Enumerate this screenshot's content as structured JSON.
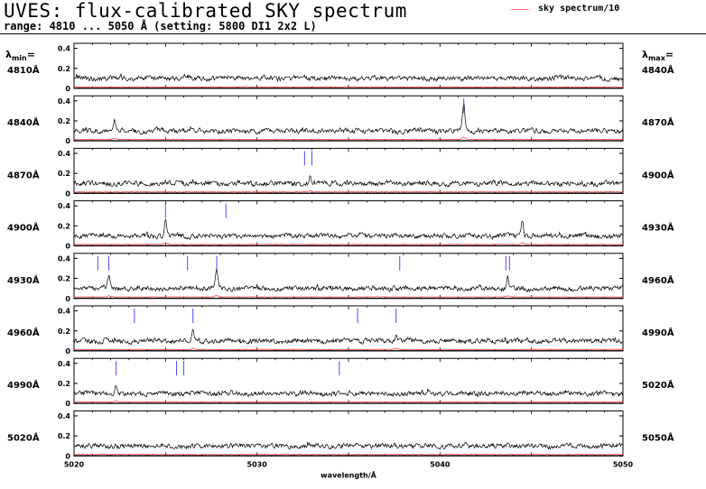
{
  "header": {
    "title": "UVES: flux-calibrated SKY spectrum",
    "subtitle": "range: 4810 ... 5050 Å (setting: 5800 DI1 2x2 L)",
    "lambda_min_prefix": "λ",
    "lambda_min_sub": "min",
    "lambda_min_suffix": "=",
    "lambda_max_prefix": "λ",
    "lambda_max_sub": "max",
    "lambda_max_suffix": "="
  },
  "legend": {
    "label": "sky spectrum/10",
    "color": "#ff6f6f"
  },
  "colors": {
    "spectrum": "#000000",
    "sky": "#ff4040",
    "line_markers": "#4a4aff",
    "frame": "#000000"
  },
  "chart_data": {
    "type": "line",
    "title": "UVES: flux-calibrated SKY spectrum",
    "xlabel": "wavelength/Å",
    "ylabel": "",
    "panel_width_angstrom": 30,
    "ylim": [
      0,
      0.45
    ],
    "y_ticks": [
      "0",
      "0.2",
      "0.4"
    ],
    "x_ticks_bottom": [
      "5020",
      "5030",
      "5040",
      "5050"
    ],
    "x_tick_values_bottom": [
      5020,
      5030,
      5040,
      5050
    ],
    "bottom_panel_xlim": [
      5020,
      5050
    ],
    "grid": false,
    "legend_position": "top-right",
    "series": [
      {
        "name": "sky spectrum/10",
        "note": ""
      }
    ],
    "panels": [
      {
        "lambda_min_label": "4810Å",
        "lambda_max_label": "4840Å",
        "lambda_min": 4810,
        "lambda_max": 4840,
        "baseline": 0.1,
        "markers": [],
        "peaks": []
      },
      {
        "lambda_min_label": "4840Å",
        "lambda_max_label": "4870Å",
        "lambda_min": 4840,
        "lambda_max": 4870,
        "baseline": 0.1,
        "markers": [
          4861.3
        ],
        "peaks": [
          {
            "x": 4842.2,
            "y": 0.2
          },
          {
            "x": 4861.3,
            "y": 0.38
          }
        ]
      },
      {
        "lambda_min_label": "4870Å",
        "lambda_max_label": "4900Å",
        "lambda_min": 4870,
        "lambda_max": 4900,
        "baseline": 0.1,
        "markers": [
          4882.6,
          4883.0
        ],
        "peaks": [
          {
            "x": 4882.9,
            "y": 0.17
          }
        ]
      },
      {
        "lambda_min_label": "4900Å",
        "lambda_max_label": "4930Å",
        "lambda_min": 4900,
        "lambda_max": 4930,
        "baseline": 0.1,
        "markers": [
          4905.0,
          4908.3
        ],
        "peaks": [
          {
            "x": 4905.0,
            "y": 0.25
          },
          {
            "x": 4924.5,
            "y": 0.27
          }
        ]
      },
      {
        "lambda_min_label": "4930Å",
        "lambda_max_label": "4960Å",
        "lambda_min": 4930,
        "lambda_max": 4960,
        "baseline": 0.1,
        "markers": [
          4931.3,
          4931.9,
          4936.2,
          4937.8,
          4947.8,
          4953.6,
          4953.8
        ],
        "peaks": [
          {
            "x": 4931.9,
            "y": 0.22
          },
          {
            "x": 4937.8,
            "y": 0.28
          },
          {
            "x": 4953.7,
            "y": 0.22
          }
        ]
      },
      {
        "lambda_min_label": "4960Å",
        "lambda_max_label": "4990Å",
        "lambda_min": 4960,
        "lambda_max": 4990,
        "baseline": 0.1,
        "markers": [
          4963.3,
          4966.5,
          4975.5,
          4977.6
        ],
        "peaks": [
          {
            "x": 4966.5,
            "y": 0.2
          },
          {
            "x": 4977.6,
            "y": 0.17
          }
        ]
      },
      {
        "lambda_min_label": "4990Å",
        "lambda_max_label": "5020Å",
        "lambda_min": 4990,
        "lambda_max": 5020,
        "baseline": 0.1,
        "markers": [
          4992.3,
          4995.6,
          4996.0,
          5004.5
        ],
        "peaks": [
          {
            "x": 4992.3,
            "y": 0.15
          }
        ]
      },
      {
        "lambda_min_label": "5020Å",
        "lambda_max_label": "5050Å",
        "lambda_min": 5020,
        "lambda_max": 5050,
        "baseline": 0.1,
        "markers": [],
        "peaks": []
      }
    ]
  }
}
